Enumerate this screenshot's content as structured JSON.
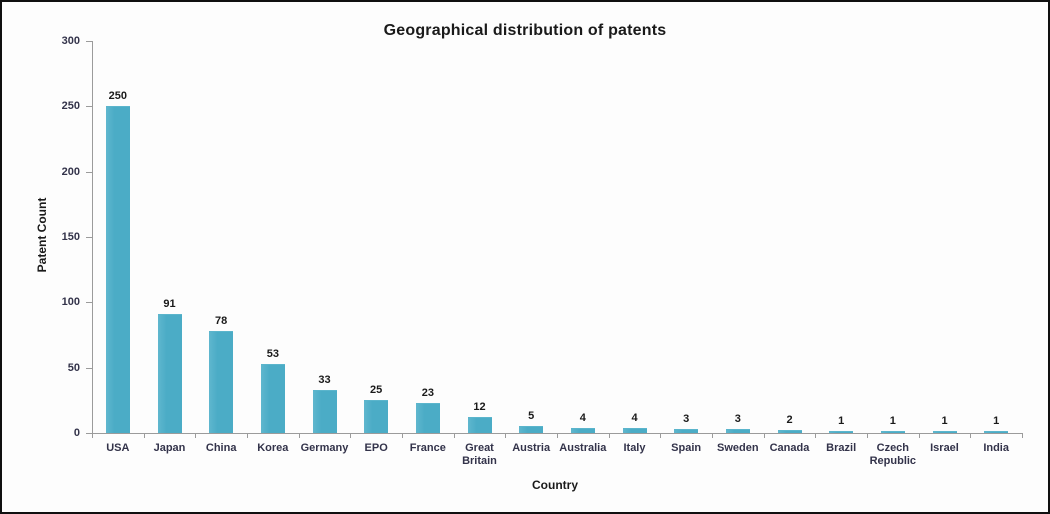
{
  "chart_data": {
    "type": "bar",
    "title": "Geographical distribution of patents",
    "xlabel": "Country",
    "ylabel": "Patent Count",
    "categories": [
      "USA",
      "Japan",
      "China",
      "Korea",
      "Germany",
      "EPO",
      "France",
      "Great Britain",
      "Austria",
      "Australia",
      "Italy",
      "Spain",
      "Sweden",
      "Canada",
      "Brazil",
      "Czech Republic",
      "Israel",
      "India"
    ],
    "values": [
      250,
      91,
      78,
      53,
      33,
      25,
      23,
      12,
      5,
      4,
      4,
      3,
      3,
      2,
      1,
      1,
      1,
      1
    ],
    "ylim": [
      0,
      300
    ],
    "ytick_interval": 50,
    "yticks": [
      0,
      50,
      100,
      150,
      200,
      250,
      300
    ],
    "data_labels": true,
    "grid": false,
    "legend": "none",
    "bar_color": "#4BACC6",
    "axis_color": "#9B9B9B",
    "text_color": "#262626",
    "background_color": "#FDFDFD"
  }
}
